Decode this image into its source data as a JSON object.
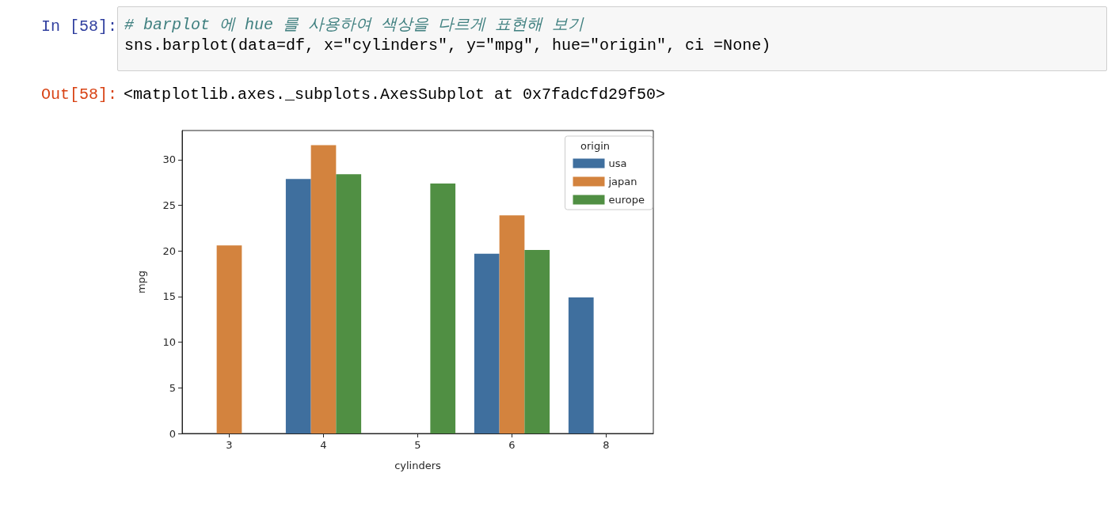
{
  "chart_data": {
    "type": "bar",
    "annotations": [
      "In [58]:",
      "# barplot 에 hue 를 사용하여 색상을 다르게 표현해 보기",
      "sns.barplot(data=df, x=\"cylinders\", y=\"mpg\", hue=\"origin\", ci =None)",
      "Out[58]:",
      "<matplotlib.axes._subplots.AxesSubplot at 0x7fadcfd29f50>"
    ],
    "xlabel": "cylinders",
    "ylabel": "mpg",
    "legend_title": "origin",
    "categories": [
      "3",
      "4",
      "5",
      "6",
      "8"
    ],
    "series": [
      {
        "name": "usa",
        "color": "#3f6f9e",
        "values": [
          null,
          27.9,
          null,
          19.7,
          14.9
        ]
      },
      {
        "name": "japan",
        "color": "#d3833e",
        "values": [
          20.6,
          31.6,
          null,
          23.9,
          null
        ]
      },
      {
        "name": "europe",
        "color": "#508f43",
        "values": [
          null,
          28.4,
          27.4,
          20.1,
          null
        ]
      }
    ],
    "ylim": [
      0,
      33.2
    ],
    "yticks": [
      0,
      5,
      10,
      15,
      20,
      25,
      30
    ],
    "grid": false,
    "legend": "top right"
  }
}
